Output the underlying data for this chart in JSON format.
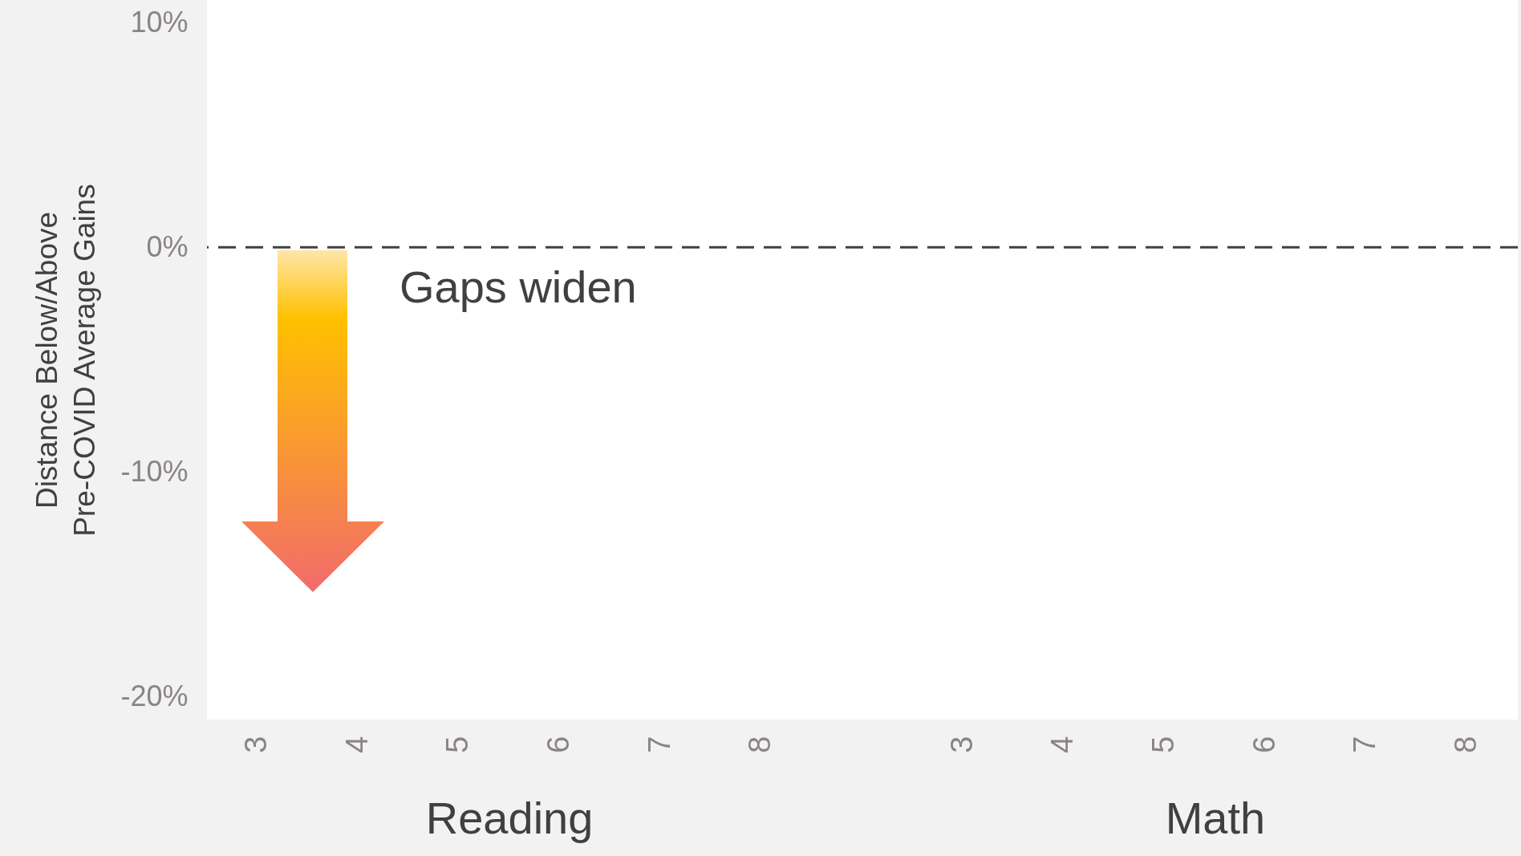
{
  "chart_data": {
    "type": "bar",
    "ylabel": "Distance Below/Above\nPre-COVID Average Gains",
    "categories": [
      "3",
      "4",
      "5",
      "6",
      "7",
      "8",
      null,
      "3",
      "4",
      "5",
      "6",
      "7",
      "8"
    ],
    "values": [
      null,
      null,
      null,
      null,
      null,
      null,
      null,
      null,
      null,
      null,
      null,
      null,
      null
    ],
    "ylim": [
      -21,
      11
    ],
    "yticks": [
      {
        "value": -20,
        "label": "-20%"
      },
      {
        "value": -10,
        "label": "-10%"
      },
      {
        "value": 0,
        "label": "0%"
      },
      {
        "value": 10,
        "label": "10%"
      }
    ],
    "grid": false,
    "ref_lines": [
      {
        "axis": "y",
        "value": 0,
        "color": "#404040",
        "line_style": "dashed"
      }
    ],
    "annotations": [
      "Gaps widen",
      "Reading",
      "Math"
    ]
  }
}
